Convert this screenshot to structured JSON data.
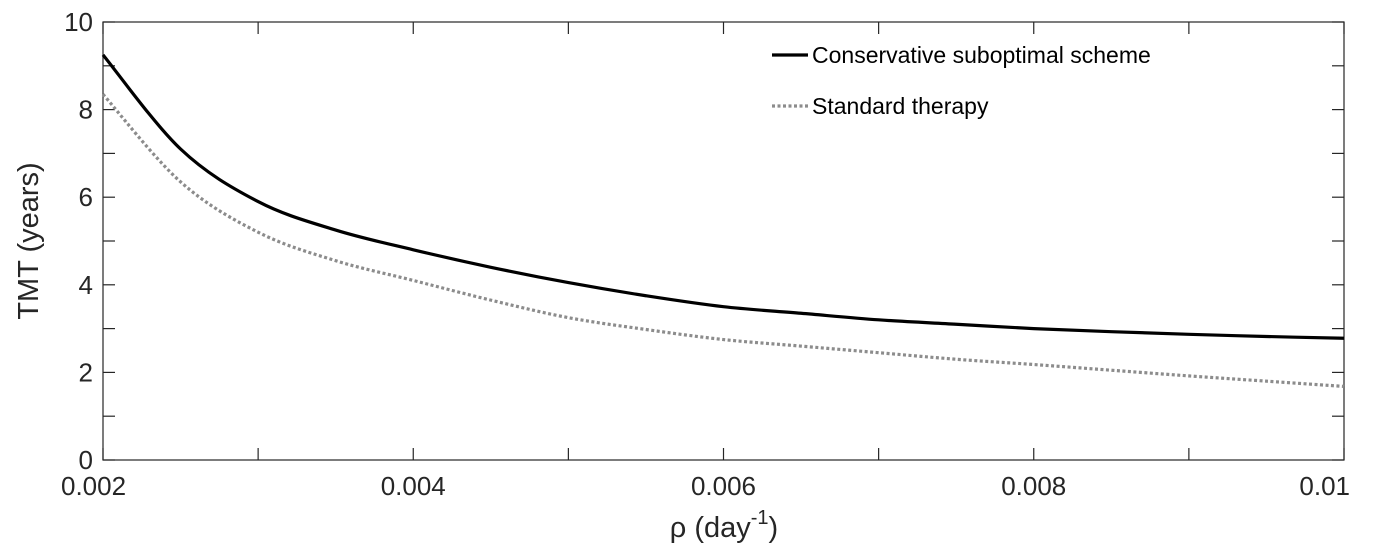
{
  "chart_data": {
    "type": "line",
    "title": "",
    "xlabel": "ρ (day",
    "xlabel_superscript": "-1",
    "xlabel_suffix": ")",
    "ylabel": "TMT (years)",
    "xlim": [
      0.002,
      0.01
    ],
    "ylim": [
      0,
      10
    ],
    "x_ticks": [
      0.002,
      0.004,
      0.006,
      0.008,
      0.01
    ],
    "x_tick_labels": [
      "0.002",
      "0.004",
      "0.006",
      "0.008",
      "0.01"
    ],
    "y_ticks": [
      0,
      2,
      4,
      6,
      8,
      10
    ],
    "y_tick_labels": [
      "0",
      "2",
      "4",
      "6",
      "8",
      "10"
    ],
    "grid": false,
    "legend_position": "top-right",
    "x": [
      0.002,
      0.0025,
      0.003,
      0.0035,
      0.004,
      0.0045,
      0.005,
      0.0055,
      0.006,
      0.0065,
      0.007,
      0.0075,
      0.008,
      0.0085,
      0.009,
      0.0095,
      0.01
    ],
    "series": [
      {
        "name": "Conservative suboptimal scheme",
        "color": "#000000",
        "style": "solid",
        "values": [
          9.25,
          7.1,
          5.9,
          5.25,
          4.8,
          4.4,
          4.05,
          3.75,
          3.5,
          3.35,
          3.2,
          3.1,
          3.0,
          2.93,
          2.87,
          2.82,
          2.78
        ]
      },
      {
        "name": "Standard therapy",
        "color": "#8c8c8c",
        "style": "dotted",
        "values": [
          8.35,
          6.35,
          5.2,
          4.55,
          4.1,
          3.65,
          3.25,
          2.98,
          2.75,
          2.6,
          2.45,
          2.3,
          2.18,
          2.05,
          1.92,
          1.8,
          1.68
        ]
      }
    ]
  }
}
